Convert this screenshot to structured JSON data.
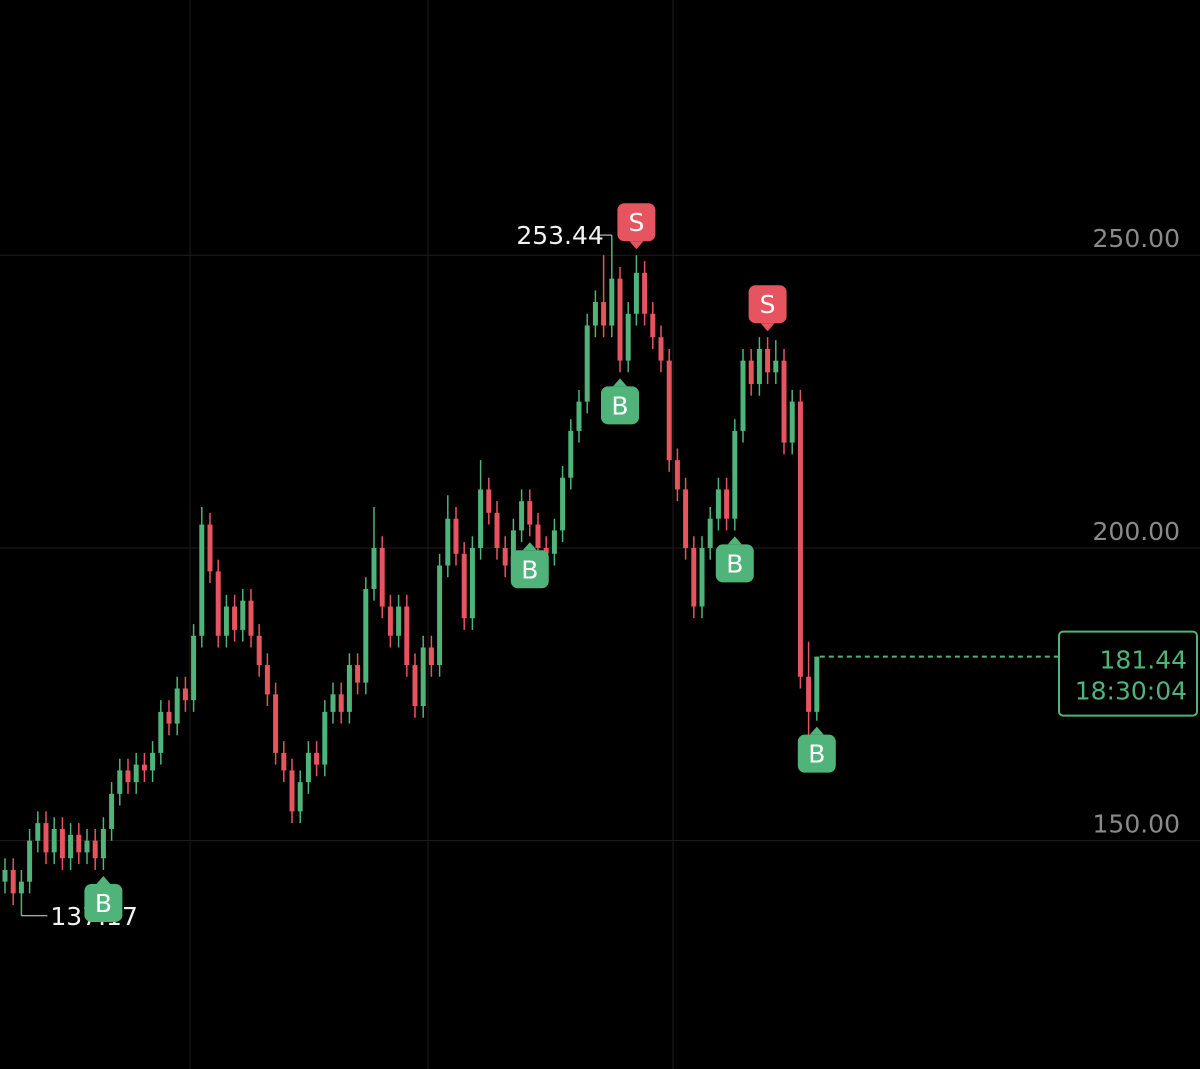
{
  "chart_data": {
    "type": "candlestick",
    "open": [
      143,
      145,
      141,
      143,
      150,
      153,
      148,
      152,
      147,
      151,
      148,
      150,
      147,
      152,
      158,
      162,
      160,
      163,
      162,
      165,
      172,
      170,
      176,
      174,
      185,
      204,
      196,
      185,
      190,
      186,
      191,
      185,
      180,
      175,
      165,
      162,
      155,
      160,
      165,
      163,
      172,
      175,
      172,
      180,
      177,
      193,
      200,
      190,
      185,
      190,
      180,
      173,
      183,
      180,
      197,
      205,
      199,
      188,
      200,
      210,
      206,
      200,
      197,
      203,
      208,
      204,
      200,
      199,
      203,
      212,
      220,
      225,
      238,
      242,
      238,
      246,
      232,
      240,
      247,
      240,
      236,
      232,
      215,
      210,
      200,
      190,
      200,
      205,
      210,
      205,
      220,
      232,
      228,
      234,
      230,
      232,
      218,
      225,
      178,
      172
    ],
    "high": [
      147,
      147,
      145,
      152,
      155,
      155,
      154,
      154,
      153,
      153,
      152,
      152,
      154,
      160,
      164,
      164,
      165,
      165,
      167,
      174,
      174,
      178,
      178,
      187,
      207,
      206,
      198,
      192,
      192,
      193,
      193,
      187,
      182,
      177,
      167,
      164,
      162,
      167,
      167,
      174,
      177,
      177,
      182,
      182,
      195,
      207,
      202,
      192,
      192,
      192,
      182,
      185,
      185,
      199,
      209,
      207,
      201,
      202,
      215,
      212,
      208,
      202,
      205,
      210,
      210,
      206,
      202,
      205,
      214,
      222,
      227,
      240,
      244,
      250,
      253.44,
      248,
      242,
      250,
      249,
      242,
      238,
      234,
      217,
      212,
      202,
      202,
      207,
      212,
      212,
      222,
      234,
      234,
      236,
      236,
      235.5,
      234,
      227,
      227,
      184,
      181.44
    ],
    "low": [
      141,
      139,
      137.17,
      141,
      148,
      146,
      146,
      145,
      145,
      146,
      146,
      145,
      145,
      150,
      156,
      158,
      158,
      160,
      160,
      163,
      168,
      168,
      172,
      172,
      183,
      194,
      183,
      183,
      184,
      184,
      183,
      178,
      173,
      163,
      160,
      153,
      153,
      158,
      161,
      161,
      170,
      170,
      170,
      175,
      175,
      191,
      188,
      183,
      183,
      178,
      171,
      171,
      178,
      178,
      195,
      197,
      186,
      186,
      198,
      204,
      198,
      195,
      195,
      201,
      202,
      198,
      197,
      197,
      201,
      210,
      218,
      223,
      236,
      236,
      236,
      230,
      230,
      238,
      238,
      234,
      230,
      213,
      208,
      198,
      188,
      188,
      198,
      203,
      203,
      203,
      218,
      226,
      226,
      228,
      228,
      216,
      216,
      176,
      166,
      170.5
    ],
    "close": [
      145,
      141,
      143,
      150,
      153,
      148,
      152,
      147,
      151,
      148,
      150,
      147,
      152,
      158,
      162,
      160,
      163,
      162,
      165,
      172,
      170,
      176,
      174,
      185,
      204,
      196,
      185,
      190,
      186,
      191,
      185,
      180,
      175,
      165,
      162,
      155,
      160,
      165,
      163,
      172,
      175,
      172,
      180,
      177,
      193,
      200,
      190,
      185,
      190,
      180,
      173,
      183,
      180,
      197,
      205,
      199,
      188,
      200,
      210,
      206,
      200,
      197,
      203,
      208,
      204,
      200,
      199,
      203,
      212,
      220,
      225,
      238,
      242,
      238,
      246,
      232,
      240,
      247,
      240,
      236,
      232,
      215,
      210,
      200,
      190,
      200,
      205,
      210,
      205,
      220,
      232,
      228,
      234,
      230,
      232,
      218,
      225,
      178,
      172,
      181.44
    ],
    "signals": [
      null,
      null,
      null,
      null,
      null,
      null,
      null,
      null,
      null,
      null,
      null,
      null,
      "B",
      null,
      null,
      null,
      null,
      null,
      null,
      null,
      null,
      null,
      null,
      null,
      null,
      null,
      null,
      null,
      null,
      null,
      null,
      null,
      null,
      null,
      null,
      null,
      null,
      null,
      null,
      null,
      null,
      null,
      null,
      null,
      null,
      null,
      null,
      null,
      null,
      null,
      null,
      null,
      null,
      null,
      null,
      null,
      null,
      null,
      null,
      null,
      null,
      null,
      null,
      null,
      "B",
      null,
      null,
      null,
      null,
      null,
      null,
      null,
      null,
      null,
      null,
      "B",
      null,
      "S",
      null,
      null,
      null,
      null,
      null,
      null,
      null,
      null,
      null,
      null,
      null,
      "B",
      null,
      null,
      null,
      "S",
      null,
      null,
      null,
      null,
      null,
      "B"
    ],
    "up_color": "#4fb37a",
    "down_color": "#e5545f",
    "ylim": [
      111,
      293.6
    ],
    "yticks": [
      {
        "value": 250,
        "label": "250.00"
      },
      {
        "value": 200,
        "label": "200.00"
      },
      {
        "value": 150,
        "label": "150.00"
      }
    ],
    "grid": true,
    "countdown": "18:30:04"
  }
}
